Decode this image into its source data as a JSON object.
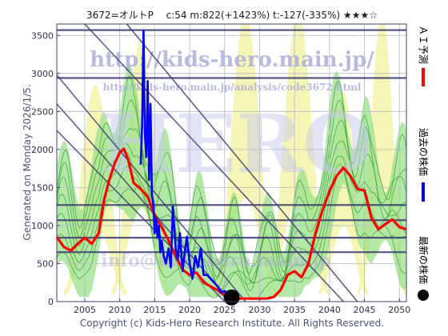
{
  "colors": {
    "frame": "#404070",
    "grid": "#b8b8c8",
    "hline": "#3a3a70",
    "diag": "#3a3a70",
    "band_yellow": "#f3f3a8",
    "band_green": "#99e08a",
    "band_line": "#2e9a2e",
    "ai": "#ff0000",
    "past": "#0000ff",
    "latest": "#000000",
    "watermark": "#a9a9d9",
    "text": "#303050"
  },
  "chart_data": {
    "type": "line",
    "title": "3672=オルトP　 c:54  m:822(+1423%)  t:-127(-335%)  ★★★☆",
    "xlim": [
      2001,
      2051
    ],
    "ylim": [
      0,
      3650
    ],
    "x_ticks": [
      2005,
      2010,
      2015,
      2020,
      2025,
      2030,
      2035,
      2040,
      2045,
      2050
    ],
    "y_ticks": [
      0,
      500,
      1000,
      1500,
      2000,
      2500,
      3000,
      3500
    ],
    "grid": true,
    "horizontal_lines": [
      3570,
      2940,
      1270,
      1070,
      840,
      650
    ],
    "diagonal_lines": [
      {
        "x": [
          2001,
          2028
        ],
        "y": [
          2980,
          0
        ]
      },
      {
        "x": [
          2001,
          2026
        ],
        "y": [
          2600,
          0
        ]
      },
      {
        "x": [
          2001,
          2025
        ],
        "y": [
          2250,
          0
        ]
      },
      {
        "x": [
          2005,
          2042
        ],
        "y": [
          3650,
          0
        ]
      },
      {
        "x": [
          2011,
          2044
        ],
        "y": [
          3650,
          0
        ]
      }
    ],
    "series": [
      {
        "name": "ＡＩ予測",
        "x": [
          2001,
          2002,
          2003,
          2004,
          2005,
          2006,
          2007,
          2007.8,
          2008.5,
          2009.3,
          2010,
          2010.6,
          2011.2,
          2012,
          2013,
          2014,
          2015,
          2016,
          2017,
          2018,
          2019,
          2020,
          2021,
          2022,
          2023,
          2024,
          2025,
          2026,
          2027,
          2028,
          2029,
          2030,
          2031,
          2032,
          2033,
          2034,
          2035,
          2036,
          2037,
          2038,
          2039,
          2040,
          2041,
          2042,
          2043,
          2044,
          2045,
          2046,
          2047,
          2048,
          2049,
          2050,
          2051
        ],
        "values": [
          850,
          720,
          670,
          760,
          840,
          760,
          900,
          1350,
          1600,
          1820,
          1960,
          2010,
          1870,
          1560,
          1480,
          1380,
          1130,
          980,
          800,
          600,
          420,
          350,
          380,
          250,
          200,
          150,
          80,
          40,
          40,
          40,
          40,
          40,
          40,
          60,
          150,
          350,
          400,
          320,
          500,
          900,
          1200,
          1450,
          1650,
          1760,
          1650,
          1480,
          1460,
          1100,
          950,
          1020,
          1080,
          980,
          950
        ]
      },
      {
        "name": "過去の株価",
        "x": [
          2013.0,
          2013.2,
          2013.4,
          2013.6,
          2013.8,
          2014.0,
          2014.2,
          2014.4,
          2014.6,
          2014.8,
          2015.0,
          2015.2,
          2015.4,
          2015.6,
          2015.8,
          2016.0,
          2016.3,
          2016.6,
          2017.0,
          2017.3,
          2017.6,
          2018.0,
          2018.3,
          2018.6,
          2019.0,
          2019.3,
          2019.6,
          2020.0,
          2020.4,
          2020.8,
          2021.2,
          2021.6,
          2022.0,
          2022.5,
          2023.0,
          2023.5,
          2024.0,
          2024.5,
          2025.0,
          2025.5,
          2026.0
        ],
        "values": [
          1800,
          2300,
          3560,
          2200,
          1900,
          2900,
          1600,
          2600,
          1400,
          1300,
          900,
          1100,
          850,
          1000,
          650,
          800,
          600,
          500,
          700,
          450,
          1250,
          700,
          550,
          900,
          400,
          650,
          850,
          500,
          300,
          600,
          450,
          700,
          350,
          350,
          300,
          250,
          200,
          120,
          140,
          80,
          60
        ]
      }
    ],
    "latest_point": {
      "x": 2026,
      "y": 54
    },
    "legend": [
      "ＡＩ予測",
      "過去の株価",
      "最新の株価"
    ],
    "legend_position": "right-vertical"
  },
  "watermark": {
    "line1": "http://kids-hero.main.jp/",
    "line2": "http://kids-hero.main.jp/analysis/code3672.html",
    "line3": "info@kids-hero.main.jp",
    "brand": "HERO"
  },
  "side_label": "Generated on Monday 2026/1/5.",
  "footer": "Copyright (c) Kids-Hero Research Institute. All Rights Reserved."
}
